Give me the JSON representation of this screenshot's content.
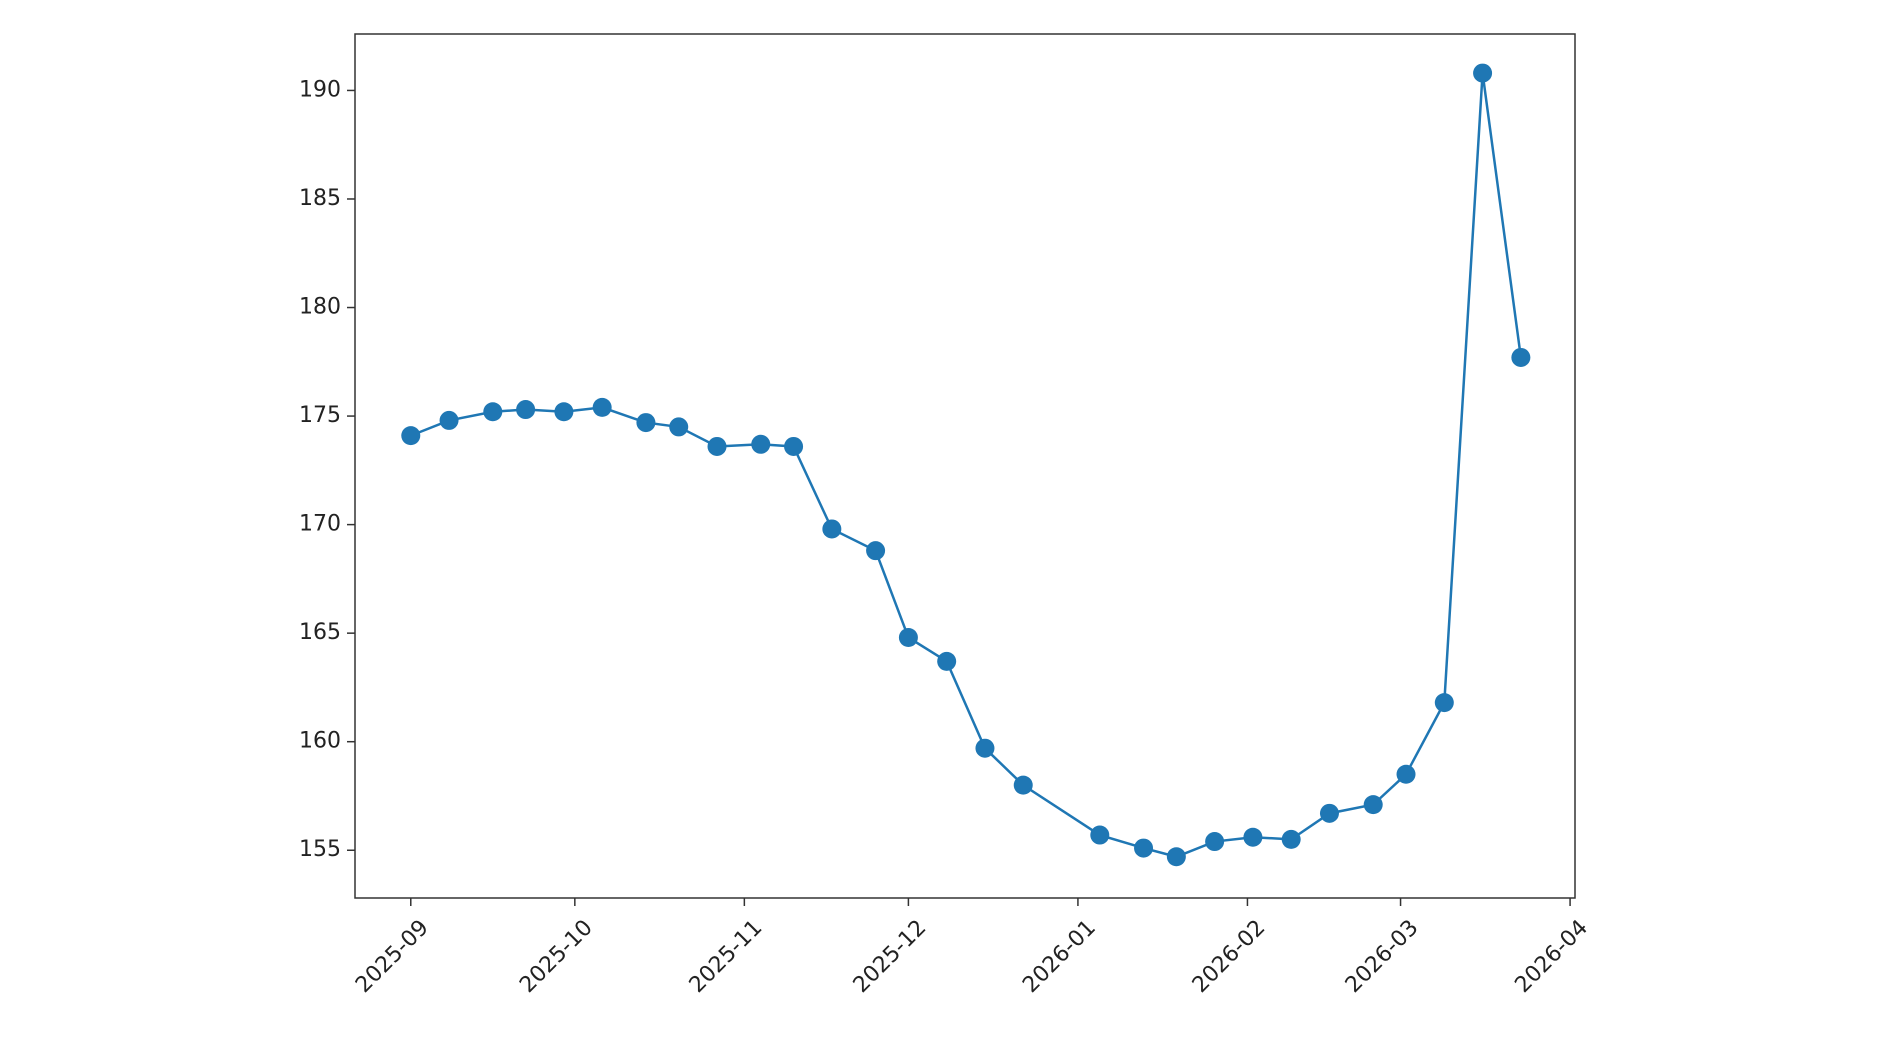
{
  "chart_data": {
    "type": "line",
    "color": "#1f77b4",
    "markers": true,
    "x": [
      0,
      7,
      15,
      21,
      28,
      35,
      43,
      49,
      56,
      64,
      70,
      77,
      85,
      91,
      98,
      105,
      112,
      126,
      134,
      140,
      147,
      154,
      161,
      168,
      176,
      182,
      189,
      196,
      203
    ],
    "values": [
      174.1,
      174.8,
      175.2,
      175.3,
      175.2,
      175.4,
      174.7,
      174.5,
      173.6,
      173.7,
      173.6,
      169.8,
      168.8,
      164.8,
      163.7,
      159.7,
      158.0,
      155.7,
      155.1,
      154.7,
      155.4,
      155.6,
      155.5,
      156.7,
      157.1,
      158.5,
      161.8,
      190.8,
      177.7
    ],
    "xlim": [
      -10.2,
      212.9
    ],
    "xticks": [
      {
        "value": 0,
        "label": "2025-09"
      },
      {
        "value": 30,
        "label": "2025-10"
      },
      {
        "value": 61,
        "label": "2025-11"
      },
      {
        "value": 91,
        "label": "2025-12"
      },
      {
        "value": 122,
        "label": "2026-01"
      },
      {
        "value": 153,
        "label": "2026-02"
      },
      {
        "value": 181,
        "label": "2026-03"
      },
      {
        "value": 212,
        "label": "2026-04"
      }
    ],
    "ylim": [
      152.8,
      192.6
    ],
    "yticks": [
      155,
      160,
      165,
      170,
      175,
      180,
      185,
      190
    ]
  }
}
